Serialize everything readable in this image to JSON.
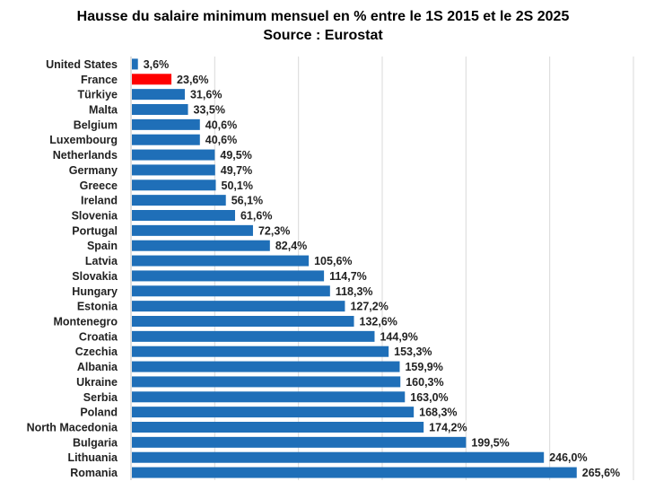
{
  "chart_data": {
    "type": "bar",
    "orientation": "horizontal",
    "title": "Hausse du salaire minimum mensuel en % entre le 1S 2015 et le 2S 2025",
    "subtitle": "Source : Eurostat",
    "xlabel": "",
    "ylabel": "",
    "xlim": [
      0,
      300
    ],
    "grid": true,
    "legend": "none",
    "colors": {
      "default": "#1f6fb8",
      "highlight": "#ff0000"
    },
    "highlight": "France",
    "categories": [
      "United States",
      "France",
      "Türkiye",
      "Malta",
      "Belgium",
      "Luxembourg",
      "Netherlands",
      "Germany",
      "Greece",
      "Ireland",
      "Slovenia",
      "Portugal",
      "Spain",
      "Latvia",
      "Slovakia",
      "Hungary",
      "Estonia",
      "Montenegro",
      "Croatia",
      "Czechia",
      "Albania",
      "Ukraine",
      "Serbia",
      "Poland",
      "North Macedonia",
      "Bulgaria",
      "Lithuania",
      "Romania"
    ],
    "values": [
      3.6,
      23.6,
      31.6,
      33.5,
      40.6,
      40.6,
      49.5,
      49.7,
      50.1,
      56.1,
      61.6,
      72.3,
      82.4,
      105.6,
      114.7,
      118.3,
      127.2,
      132.6,
      144.9,
      153.3,
      159.9,
      160.3,
      163.0,
      168.3,
      174.2,
      199.5,
      246.0,
      265.6
    ],
    "labels": [
      "3,6%",
      "23,6%",
      "31,6%",
      "33,5%",
      "40,6%",
      "40,6%",
      "49,5%",
      "49,7%",
      "50,1%",
      "56,1%",
      "61,6%",
      "72,3%",
      "82,4%",
      "105,6%",
      "114,7%",
      "118,3%",
      "127,2%",
      "132,6%",
      "144,9%",
      "153,3%",
      "159,9%",
      "160,3%",
      "163,0%",
      "168,3%",
      "174,2%",
      "199,5%",
      "246,0%",
      "265,6%"
    ]
  }
}
